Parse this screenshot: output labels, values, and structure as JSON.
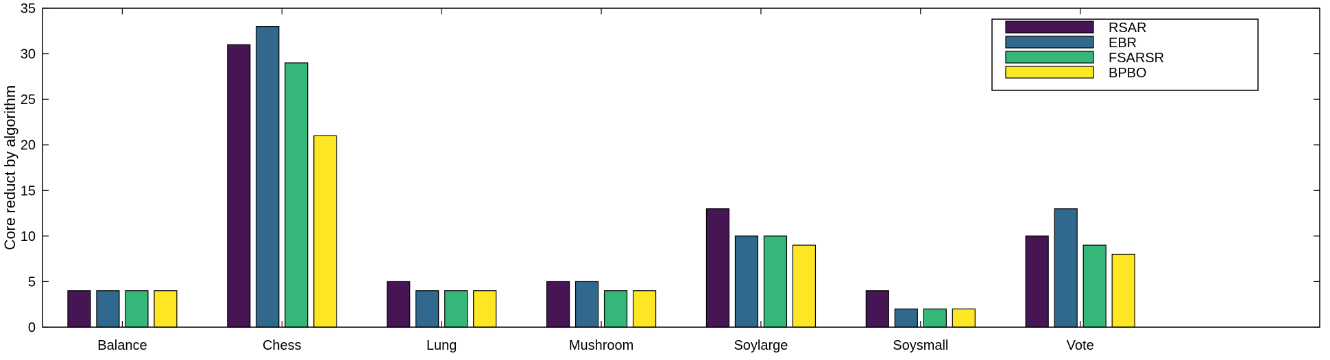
{
  "chart_data": {
    "type": "bar",
    "title": "",
    "xlabel": "",
    "ylabel": "Core reduct by algorithm",
    "categories": [
      "Balance",
      "Chess",
      "Lung",
      "Mushroom",
      "Soylarge",
      "Soysmall",
      "Vote"
    ],
    "series": [
      {
        "name": "RSAR",
        "color": "#461554",
        "values": [
          4,
          31,
          5,
          5,
          13,
          4,
          10
        ]
      },
      {
        "name": "EBR",
        "color": "#31688e",
        "values": [
          4,
          33,
          4,
          5,
          10,
          2,
          13
        ]
      },
      {
        "name": "FSARSR",
        "color": "#35b779",
        "values": [
          4,
          29,
          4,
          4,
          10,
          2,
          9
        ]
      },
      {
        "name": "BPBO",
        "color": "#fde725",
        "values": [
          4,
          21,
          4,
          4,
          9,
          2,
          8
        ]
      }
    ],
    "ylim": [
      0,
      35
    ],
    "yticks": [
      0,
      5,
      10,
      15,
      20,
      25,
      30,
      35
    ],
    "grid": false,
    "legend_position": "top-right"
  }
}
